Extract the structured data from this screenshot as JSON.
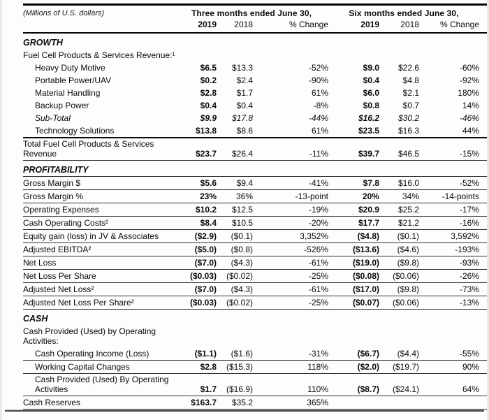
{
  "table": {
    "units_label": "(Millions of U.S. dollars)",
    "header": {
      "group1": "Three months ended June 30,",
      "group2": "Six months ended June 30,",
      "cols": [
        "2019",
        "2018",
        "% Change",
        "2019",
        "2018",
        "% Change"
      ]
    },
    "rows": [
      {
        "kind": "section",
        "label": "GROWTH"
      },
      {
        "kind": "text",
        "label": "Fuel Cell Products & Services Revenue:¹"
      },
      {
        "kind": "data",
        "indent": 1,
        "label": "Heavy Duty Motive",
        "values": [
          "$6.5",
          "$13.3",
          "-52%",
          "$9.0",
          "$22.6",
          "-60%"
        ]
      },
      {
        "kind": "data",
        "indent": 1,
        "label": "Portable Power/UAV",
        "values": [
          "$0.2",
          "$2.4",
          "-90%",
          "$0.4",
          "$4.8",
          "-92%"
        ]
      },
      {
        "kind": "data",
        "indent": 1,
        "label": "Material Handling",
        "values": [
          "$2.8",
          "$1.7",
          "61%",
          "$6.0",
          "$2.1",
          "180%"
        ]
      },
      {
        "kind": "data",
        "indent": 1,
        "label": "Backup Power",
        "values": [
          "$0.4",
          "$0.4",
          "-8%",
          "$0.8",
          "$0.7",
          "14%"
        ]
      },
      {
        "kind": "data",
        "indent": 1,
        "italic": true,
        "label": "Sub-Total",
        "values": [
          "$9.9",
          "$17.8",
          "-44%",
          "$16.2",
          "$30.2",
          "-46%"
        ]
      },
      {
        "kind": "data",
        "indent": 1,
        "label": "Technology Solutions",
        "values": [
          "$13.8",
          "$8.6",
          "61%",
          "$23.5",
          "$16.3",
          "44%"
        ],
        "bb": 2
      },
      {
        "kind": "data2",
        "label": "Total Fuel Cell Products & Services",
        "label2": "Revenue",
        "values": [
          "$23.7",
          "$26.4",
          "-11%",
          "$39.7",
          "$46.5",
          "-15%"
        ],
        "bb": 1
      },
      {
        "kind": "section",
        "label": "PROFITABILITY",
        "bb": 1
      },
      {
        "kind": "data",
        "label": "Gross Margin $",
        "values": [
          "$5.6",
          "$9.4",
          "-41%",
          "$7.8",
          "$16.0",
          "-52%"
        ],
        "bb": 1
      },
      {
        "kind": "data",
        "label": "Gross Margin %",
        "values": [
          "23%",
          "36%",
          "-13-point",
          "20%",
          "34%",
          "-14-points"
        ],
        "bb": 1
      },
      {
        "kind": "data",
        "label": "Operating Expenses",
        "values": [
          "$10.2",
          "$12.5",
          "-19%",
          "$20.9",
          "$25.2",
          "-17%"
        ],
        "bb": 1
      },
      {
        "kind": "data",
        "label": "Cash Operating Costs²",
        "values": [
          "$8.4",
          "$10.5",
          "-20%",
          "$17.7",
          "$21.2",
          "-16%"
        ],
        "bb": 1
      },
      {
        "kind": "data",
        "label": "Equity gain (loss) in JV & Associates",
        "values": [
          "($2.9)",
          "($0.1)",
          "3,352%",
          "($4.8)",
          "($0.1)",
          "3,592%"
        ],
        "bb": 1
      },
      {
        "kind": "data",
        "label": "Adjusted EBITDA²",
        "values": [
          "($5.0)",
          "($0.8)",
          "-526%",
          "($13.6)",
          "($4.6)",
          "-193%"
        ],
        "bb": 1
      },
      {
        "kind": "data",
        "label": "Net Loss",
        "values": [
          "($7.0)",
          "($4.3)",
          "-61%",
          "($19.0)",
          "($9.8)",
          "-93%"
        ],
        "bb": 1
      },
      {
        "kind": "data",
        "label": "Net Loss Per Share",
        "values": [
          "($0.03)",
          "($0.02)",
          "-25%",
          "($0.08)",
          "($0.06)",
          "-26%"
        ],
        "bb": 1
      },
      {
        "kind": "data",
        "label": "Adjusted Net Loss²",
        "values": [
          "($7.0)",
          "($4.3)",
          "-61%",
          "($17.0)",
          "($9.8)",
          "-73%"
        ],
        "bb": 1
      },
      {
        "kind": "data",
        "label": "Adjusted Net Loss Per Share²",
        "values": [
          "($0.03)",
          "($0.02)",
          "-25%",
          "($0.07)",
          "($0.06)",
          "-13%"
        ],
        "bb": 1
      },
      {
        "kind": "section",
        "label": "CASH"
      },
      {
        "kind": "text",
        "label": "Cash Provided (Used) by Operating",
        "label2": "Activities:"
      },
      {
        "kind": "data",
        "indent": 1,
        "label": "Cash Operating Income (Loss)",
        "values": [
          "($1.1)",
          "($1.6)",
          "-31%",
          "($6.7)",
          "($4.4)",
          "-55%"
        ],
        "bb": 1
      },
      {
        "kind": "data",
        "indent": 1,
        "label": "Working Capital Changes",
        "values": [
          "$2.8",
          "($15.3)",
          "118%",
          "($2.0)",
          "($19.7)",
          "90%"
        ],
        "bb": 1
      },
      {
        "kind": "data2",
        "indent": 1,
        "label": "Cash Provided (Used) By Operating",
        "label2": "Activities",
        "values": [
          "$1.7",
          "($16.9)",
          "110%",
          "($8.7)",
          "($24.1)",
          "64%"
        ],
        "bb": 1
      },
      {
        "kind": "data",
        "label": "Cash Reserves",
        "values": [
          "$163.7",
          "$35.2",
          "365%",
          "",
          "",
          ""
        ],
        "bb": 1
      }
    ]
  }
}
